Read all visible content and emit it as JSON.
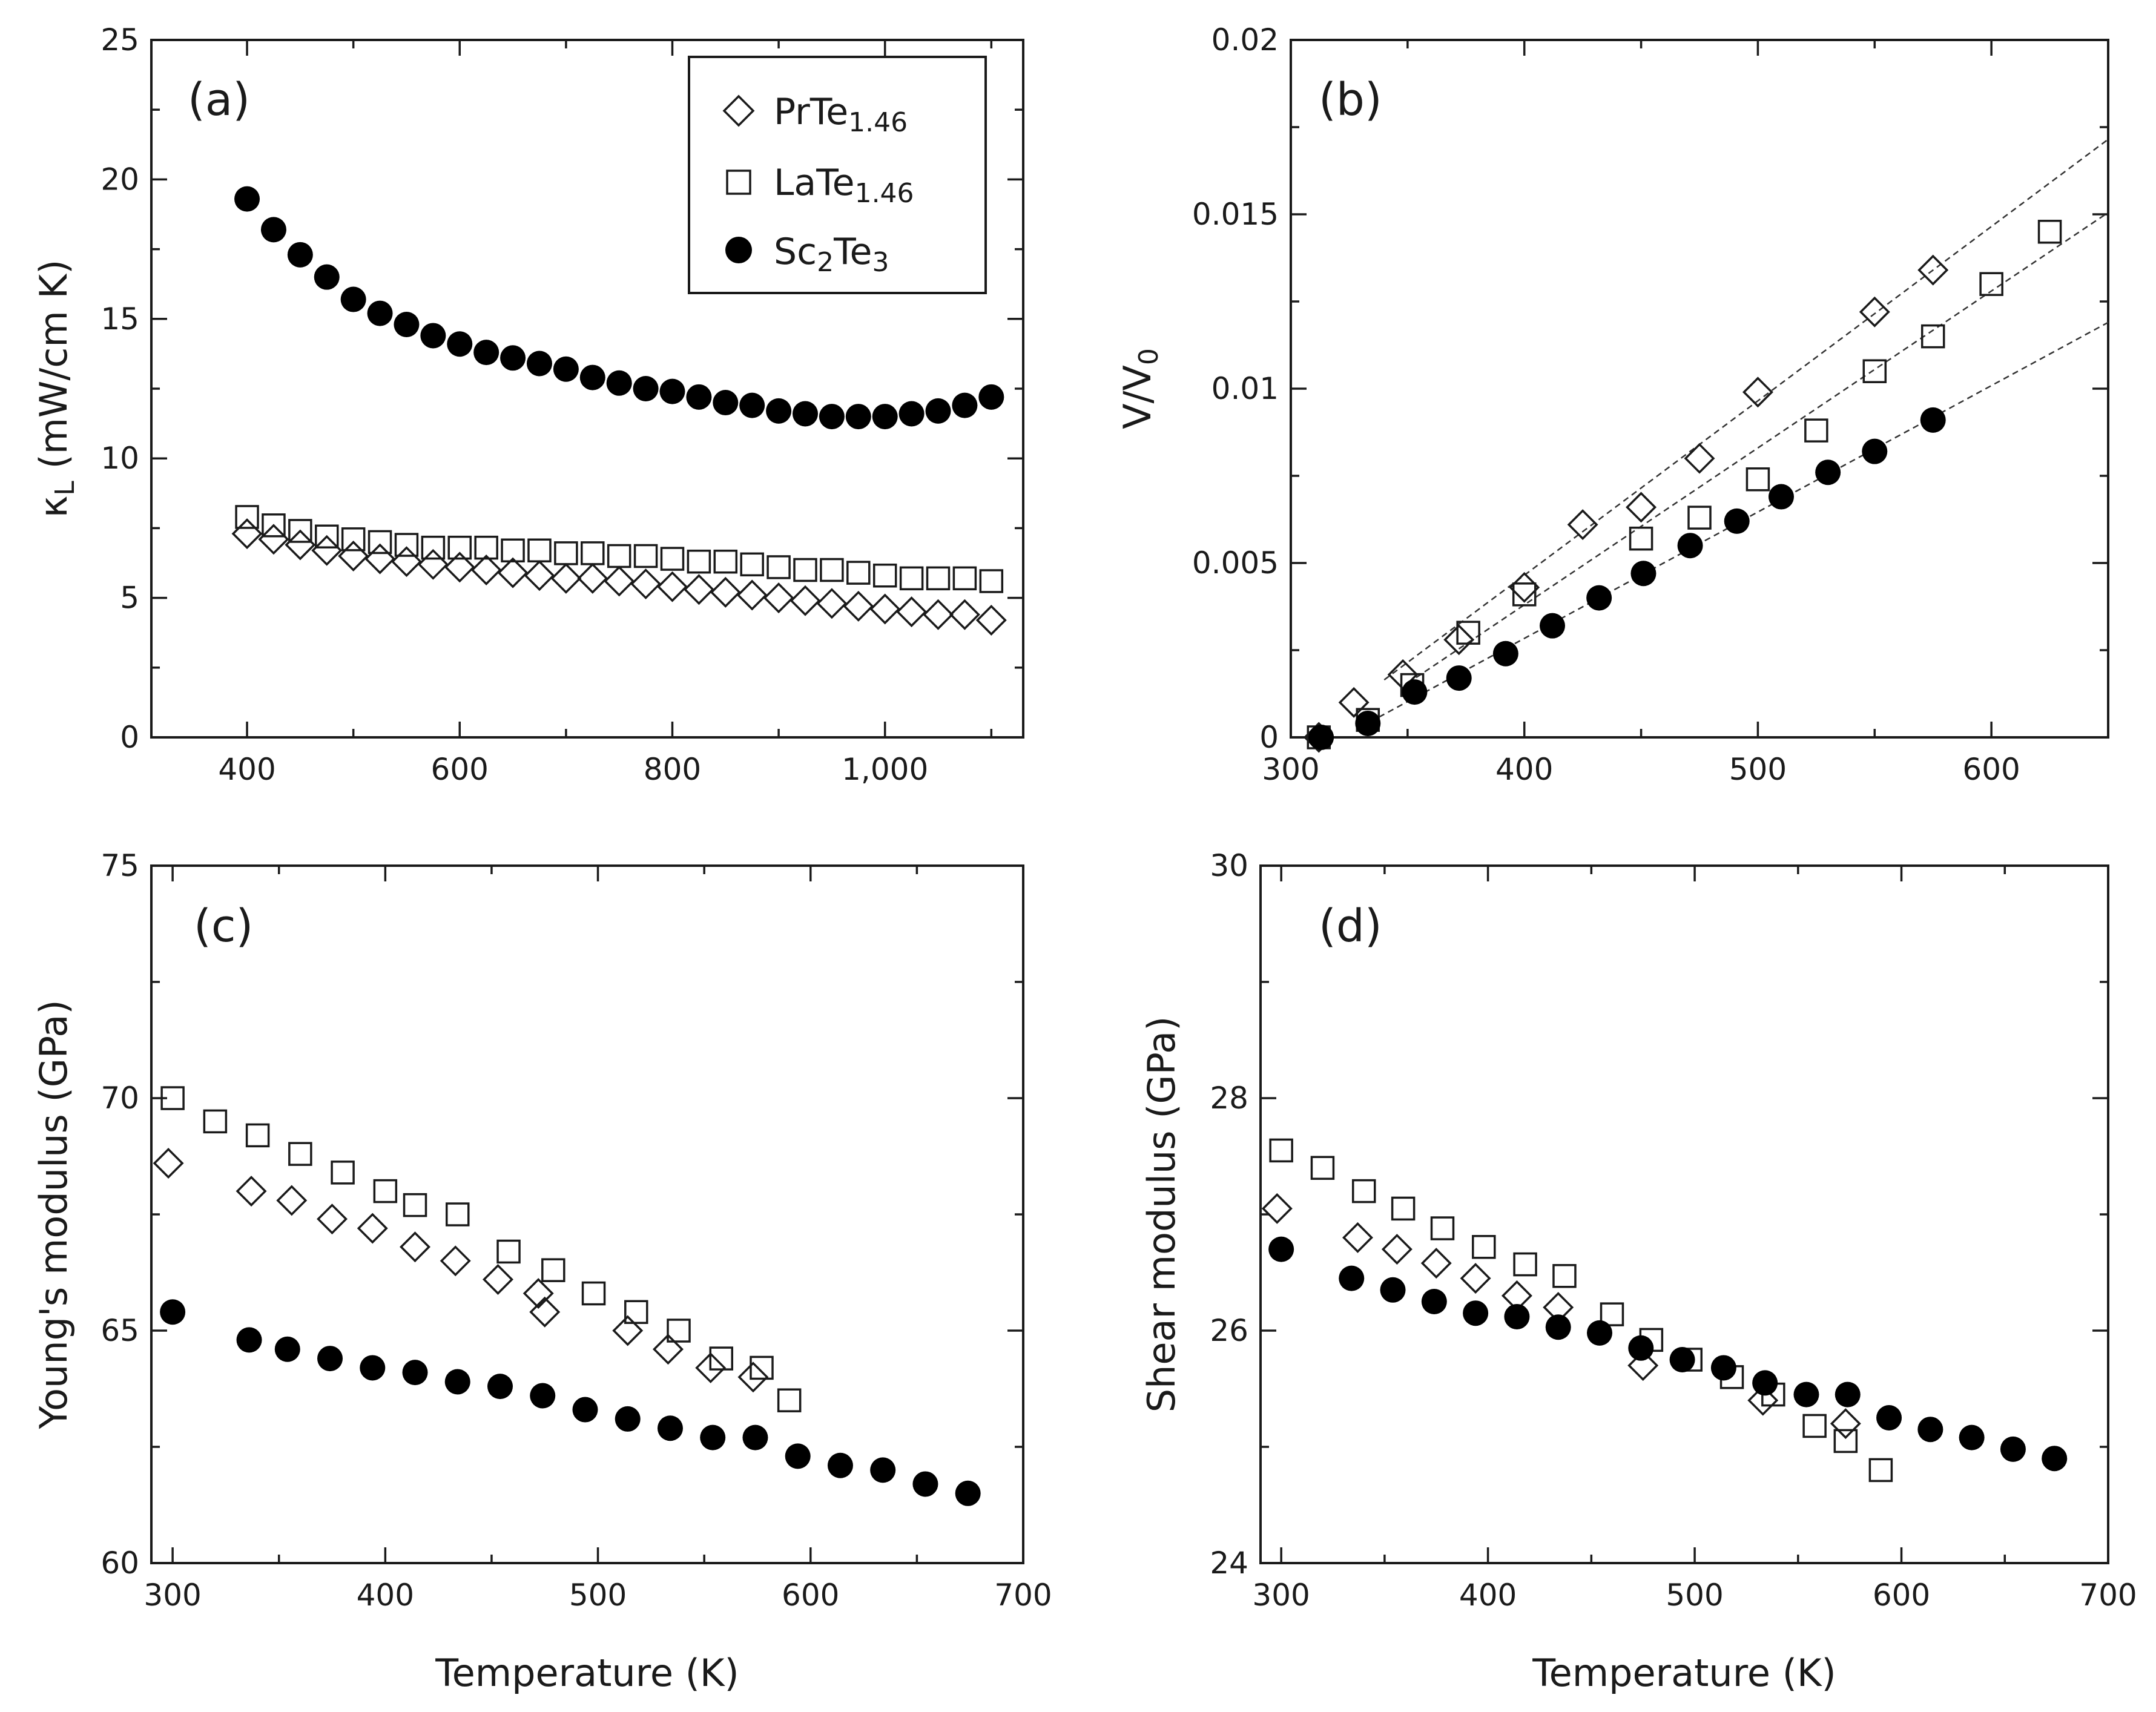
{
  "legend": {
    "series": [
      {
        "base": "PrTe",
        "sub": "1.46",
        "marker": "diamond-open"
      },
      {
        "base": "LaTe",
        "sub": "1.46",
        "marker": "square-open"
      },
      {
        "base": "Sc",
        "sub": "2",
        "base2": "Te",
        "sub2": "3",
        "marker": "circle-filled"
      }
    ]
  },
  "chart_data": [
    {
      "id": "a",
      "type": "scatter",
      "panel_label": "(a)",
      "ylabel": {
        "symbol": "κ",
        "sub": "L",
        "rest": " (mW/cm K)"
      },
      "xlabel": "",
      "xlim": [
        310,
        1130
      ],
      "ylim": [
        0,
        25
      ],
      "xticks": [
        400,
        600,
        800,
        1000
      ],
      "xtick_labels": [
        "400",
        "600",
        "800",
        "1,000"
      ],
      "yticks": [
        0,
        5,
        10,
        15,
        20,
        25
      ],
      "ytick_labels": [
        "0",
        "5",
        "10",
        "15",
        "20",
        "25"
      ],
      "series": [
        {
          "name": "PrTe1.46",
          "marker": "diamond-open",
          "x": [
            400,
            425,
            450,
            475,
            500,
            525,
            550,
            575,
            600,
            625,
            650,
            675,
            700,
            725,
            750,
            775,
            800,
            825,
            850,
            875,
            900,
            925,
            950,
            975,
            1000,
            1025,
            1050,
            1075,
            1100
          ],
          "y": [
            7.3,
            7.1,
            6.9,
            6.7,
            6.5,
            6.4,
            6.3,
            6.2,
            6.1,
            6.0,
            5.9,
            5.8,
            5.7,
            5.7,
            5.6,
            5.5,
            5.4,
            5.3,
            5.2,
            5.1,
            5.0,
            4.9,
            4.8,
            4.7,
            4.6,
            4.5,
            4.4,
            4.4,
            4.2
          ]
        },
        {
          "name": "LaTe1.46",
          "marker": "square-open",
          "x": [
            400,
            425,
            450,
            475,
            500,
            525,
            550,
            575,
            600,
            625,
            650,
            675,
            700,
            725,
            750,
            775,
            800,
            825,
            850,
            875,
            900,
            925,
            950,
            975,
            1000,
            1025,
            1050,
            1075,
            1100
          ],
          "y": [
            7.9,
            7.6,
            7.4,
            7.2,
            7.1,
            7.0,
            6.9,
            6.8,
            6.8,
            6.8,
            6.7,
            6.7,
            6.6,
            6.6,
            6.5,
            6.5,
            6.4,
            6.3,
            6.3,
            6.2,
            6.1,
            6.0,
            6.0,
            5.9,
            5.8,
            5.7,
            5.7,
            5.7,
            5.6
          ]
        },
        {
          "name": "Sc2Te3",
          "marker": "circle-filled",
          "x": [
            400,
            425,
            450,
            475,
            500,
            525,
            550,
            575,
            600,
            625,
            650,
            675,
            700,
            725,
            750,
            775,
            800,
            825,
            850,
            875,
            900,
            925,
            950,
            975,
            1000,
            1025,
            1050,
            1075,
            1100
          ],
          "y": [
            19.3,
            18.2,
            17.3,
            16.5,
            15.7,
            15.2,
            14.8,
            14.4,
            14.1,
            13.8,
            13.6,
            13.4,
            13.2,
            12.9,
            12.7,
            12.5,
            12.4,
            12.2,
            12.0,
            11.9,
            11.7,
            11.6,
            11.5,
            11.5,
            11.5,
            11.6,
            11.7,
            11.9,
            12.2
          ]
        }
      ]
    },
    {
      "id": "b",
      "type": "scatter",
      "panel_label": "(b)",
      "ylabel": {
        "symbol": "V/V",
        "sub": "0",
        "rest": ""
      },
      "xlabel": "",
      "xlim": [
        300,
        650
      ],
      "ylim": [
        0,
        0.02
      ],
      "xticks": [
        300,
        400,
        500,
        600
      ],
      "xtick_labels": [
        "300",
        "400",
        "500",
        "600"
      ],
      "yticks": [
        0,
        0.005,
        0.01,
        0.015,
        0.02
      ],
      "ytick_labels": [
        "0",
        "0.005",
        "0.01",
        "0.015",
        "0.02"
      ],
      "fit_lines": [
        {
          "name": "PrTe1.46 fit",
          "x": [
            340,
            650
          ],
          "y": [
            0.00165,
            0.01715
          ]
        },
        {
          "name": "LaTe1.46 fit",
          "x": [
            350,
            650
          ],
          "y": [
            0.00155,
            0.01505
          ]
        },
        {
          "name": "Sc2Te3 fit",
          "x": [
            330,
            650
          ],
          "y": [
            0.0003,
            0.0119
          ]
        }
      ],
      "series": [
        {
          "name": "PrTe1.46",
          "marker": "diamond-open",
          "x": [
            312,
            327,
            348,
            372,
            400,
            425,
            450,
            475,
            500,
            550,
            575
          ],
          "y": [
            0.0,
            0.001,
            0.0018,
            0.0028,
            0.0043,
            0.0061,
            0.0066,
            0.008,
            0.0099,
            0.0122,
            0.0134
          ]
        },
        {
          "name": "LaTe1.46",
          "marker": "square-open",
          "x": [
            312,
            333,
            352,
            376,
            400,
            450,
            475,
            500,
            525,
            550,
            575,
            600,
            625
          ],
          "y": [
            0.0,
            0.0005,
            0.0015,
            0.003,
            0.0041,
            0.0057,
            0.0063,
            0.0074,
            0.0088,
            0.0105,
            0.0115,
            0.013,
            0.0145
          ]
        },
        {
          "name": "Sc2Te3",
          "marker": "circle-filled",
          "x": [
            313,
            333,
            353,
            372,
            392,
            412,
            432,
            451,
            471,
            491,
            510,
            530,
            550,
            575
          ],
          "y": [
            0.0,
            0.0004,
            0.0013,
            0.0017,
            0.0024,
            0.0032,
            0.004,
            0.0047,
            0.0055,
            0.0062,
            0.0069,
            0.0076,
            0.0082,
            0.0091
          ]
        }
      ]
    },
    {
      "id": "c",
      "type": "scatter",
      "panel_label": "(c)",
      "ylabel": {
        "symbol": "Young's modulus (GPa)",
        "sub": "",
        "rest": ""
      },
      "xlabel": "Temperature (K)",
      "xlim": [
        290,
        700
      ],
      "ylim": [
        60,
        75
      ],
      "xticks": [
        300,
        400,
        500,
        600,
        700
      ],
      "xtick_labels": [
        "300",
        "400",
        "500",
        "600",
        "700"
      ],
      "yticks": [
        60,
        65,
        70,
        75
      ],
      "ytick_labels": [
        "60",
        "65",
        "70",
        "75"
      ],
      "series": [
        {
          "name": "PrTe1.46",
          "marker": "diamond-open",
          "x": [
            298,
            337,
            356,
            375,
            394,
            414,
            433,
            453,
            472,
            475,
            514,
            533,
            553,
            573
          ],
          "y": [
            68.6,
            68.0,
            67.8,
            67.4,
            67.2,
            66.8,
            66.5,
            66.1,
            65.8,
            65.4,
            65.0,
            64.6,
            64.2,
            64.0
          ]
        },
        {
          "name": "LaTe1.46",
          "marker": "square-open",
          "x": [
            300,
            320,
            340,
            360,
            380,
            400,
            414,
            434,
            458,
            479,
            498,
            518,
            538,
            558,
            577,
            590
          ],
          "y": [
            70.0,
            69.5,
            69.2,
            68.8,
            68.4,
            68.0,
            67.7,
            67.5,
            66.7,
            66.3,
            65.8,
            65.4,
            65.0,
            64.4,
            64.2,
            63.5
          ]
        },
        {
          "name": "Sc2Te3",
          "marker": "circle-filled",
          "x": [
            300,
            336,
            354,
            374,
            394,
            414,
            434,
            454,
            474,
            494,
            514,
            534,
            554,
            574,
            594,
            614,
            634,
            654,
            674
          ],
          "y": [
            65.4,
            64.8,
            64.6,
            64.4,
            64.2,
            64.1,
            63.9,
            63.8,
            63.6,
            63.3,
            63.1,
            62.9,
            62.7,
            62.7,
            62.3,
            62.1,
            62.0,
            61.7,
            61.5
          ]
        }
      ]
    },
    {
      "id": "d",
      "type": "scatter",
      "panel_label": "(d)",
      "ylabel": {
        "symbol": "Shear modulus (GPa)",
        "sub": "",
        "rest": ""
      },
      "xlabel": "Temperature (K)",
      "xlim": [
        290,
        700
      ],
      "ylim": [
        24,
        30
      ],
      "xticks": [
        300,
        400,
        500,
        600,
        700
      ],
      "xtick_labels": [
        "300",
        "400",
        "500",
        "600",
        "700"
      ],
      "yticks": [
        24,
        26,
        28,
        30
      ],
      "ytick_labels": [
        "24",
        "26",
        "28",
        "30"
      ],
      "series": [
        {
          "name": "PrTe1.46",
          "marker": "diamond-open",
          "x": [
            298,
            337,
            356,
            375,
            394,
            414,
            434,
            475,
            533,
            573
          ],
          "y": [
            27.05,
            26.8,
            26.7,
            26.58,
            26.45,
            26.3,
            26.2,
            25.7,
            25.4,
            25.2
          ]
        },
        {
          "name": "LaTe1.46",
          "marker": "square-open",
          "x": [
            300,
            320,
            340,
            359,
            378,
            398,
            418,
            437,
            460,
            479,
            498,
            518,
            538,
            558,
            573,
            590
          ],
          "y": [
            27.55,
            27.4,
            27.2,
            27.05,
            26.88,
            26.72,
            26.57,
            26.47,
            26.14,
            25.92,
            25.75,
            25.6,
            25.45,
            25.18,
            25.05,
            24.8
          ]
        },
        {
          "name": "Sc2Te3",
          "marker": "circle-filled",
          "x": [
            300,
            334,
            354,
            374,
            394,
            414,
            434,
            454,
            474,
            494,
            514,
            534,
            554,
            574,
            594,
            614,
            634,
            654,
            674
          ],
          "y": [
            26.7,
            26.45,
            26.35,
            26.25,
            26.15,
            26.12,
            26.03,
            25.98,
            25.85,
            25.75,
            25.68,
            25.55,
            25.45,
            25.45,
            25.25,
            25.15,
            25.08,
            24.98,
            24.9
          ]
        }
      ]
    }
  ]
}
